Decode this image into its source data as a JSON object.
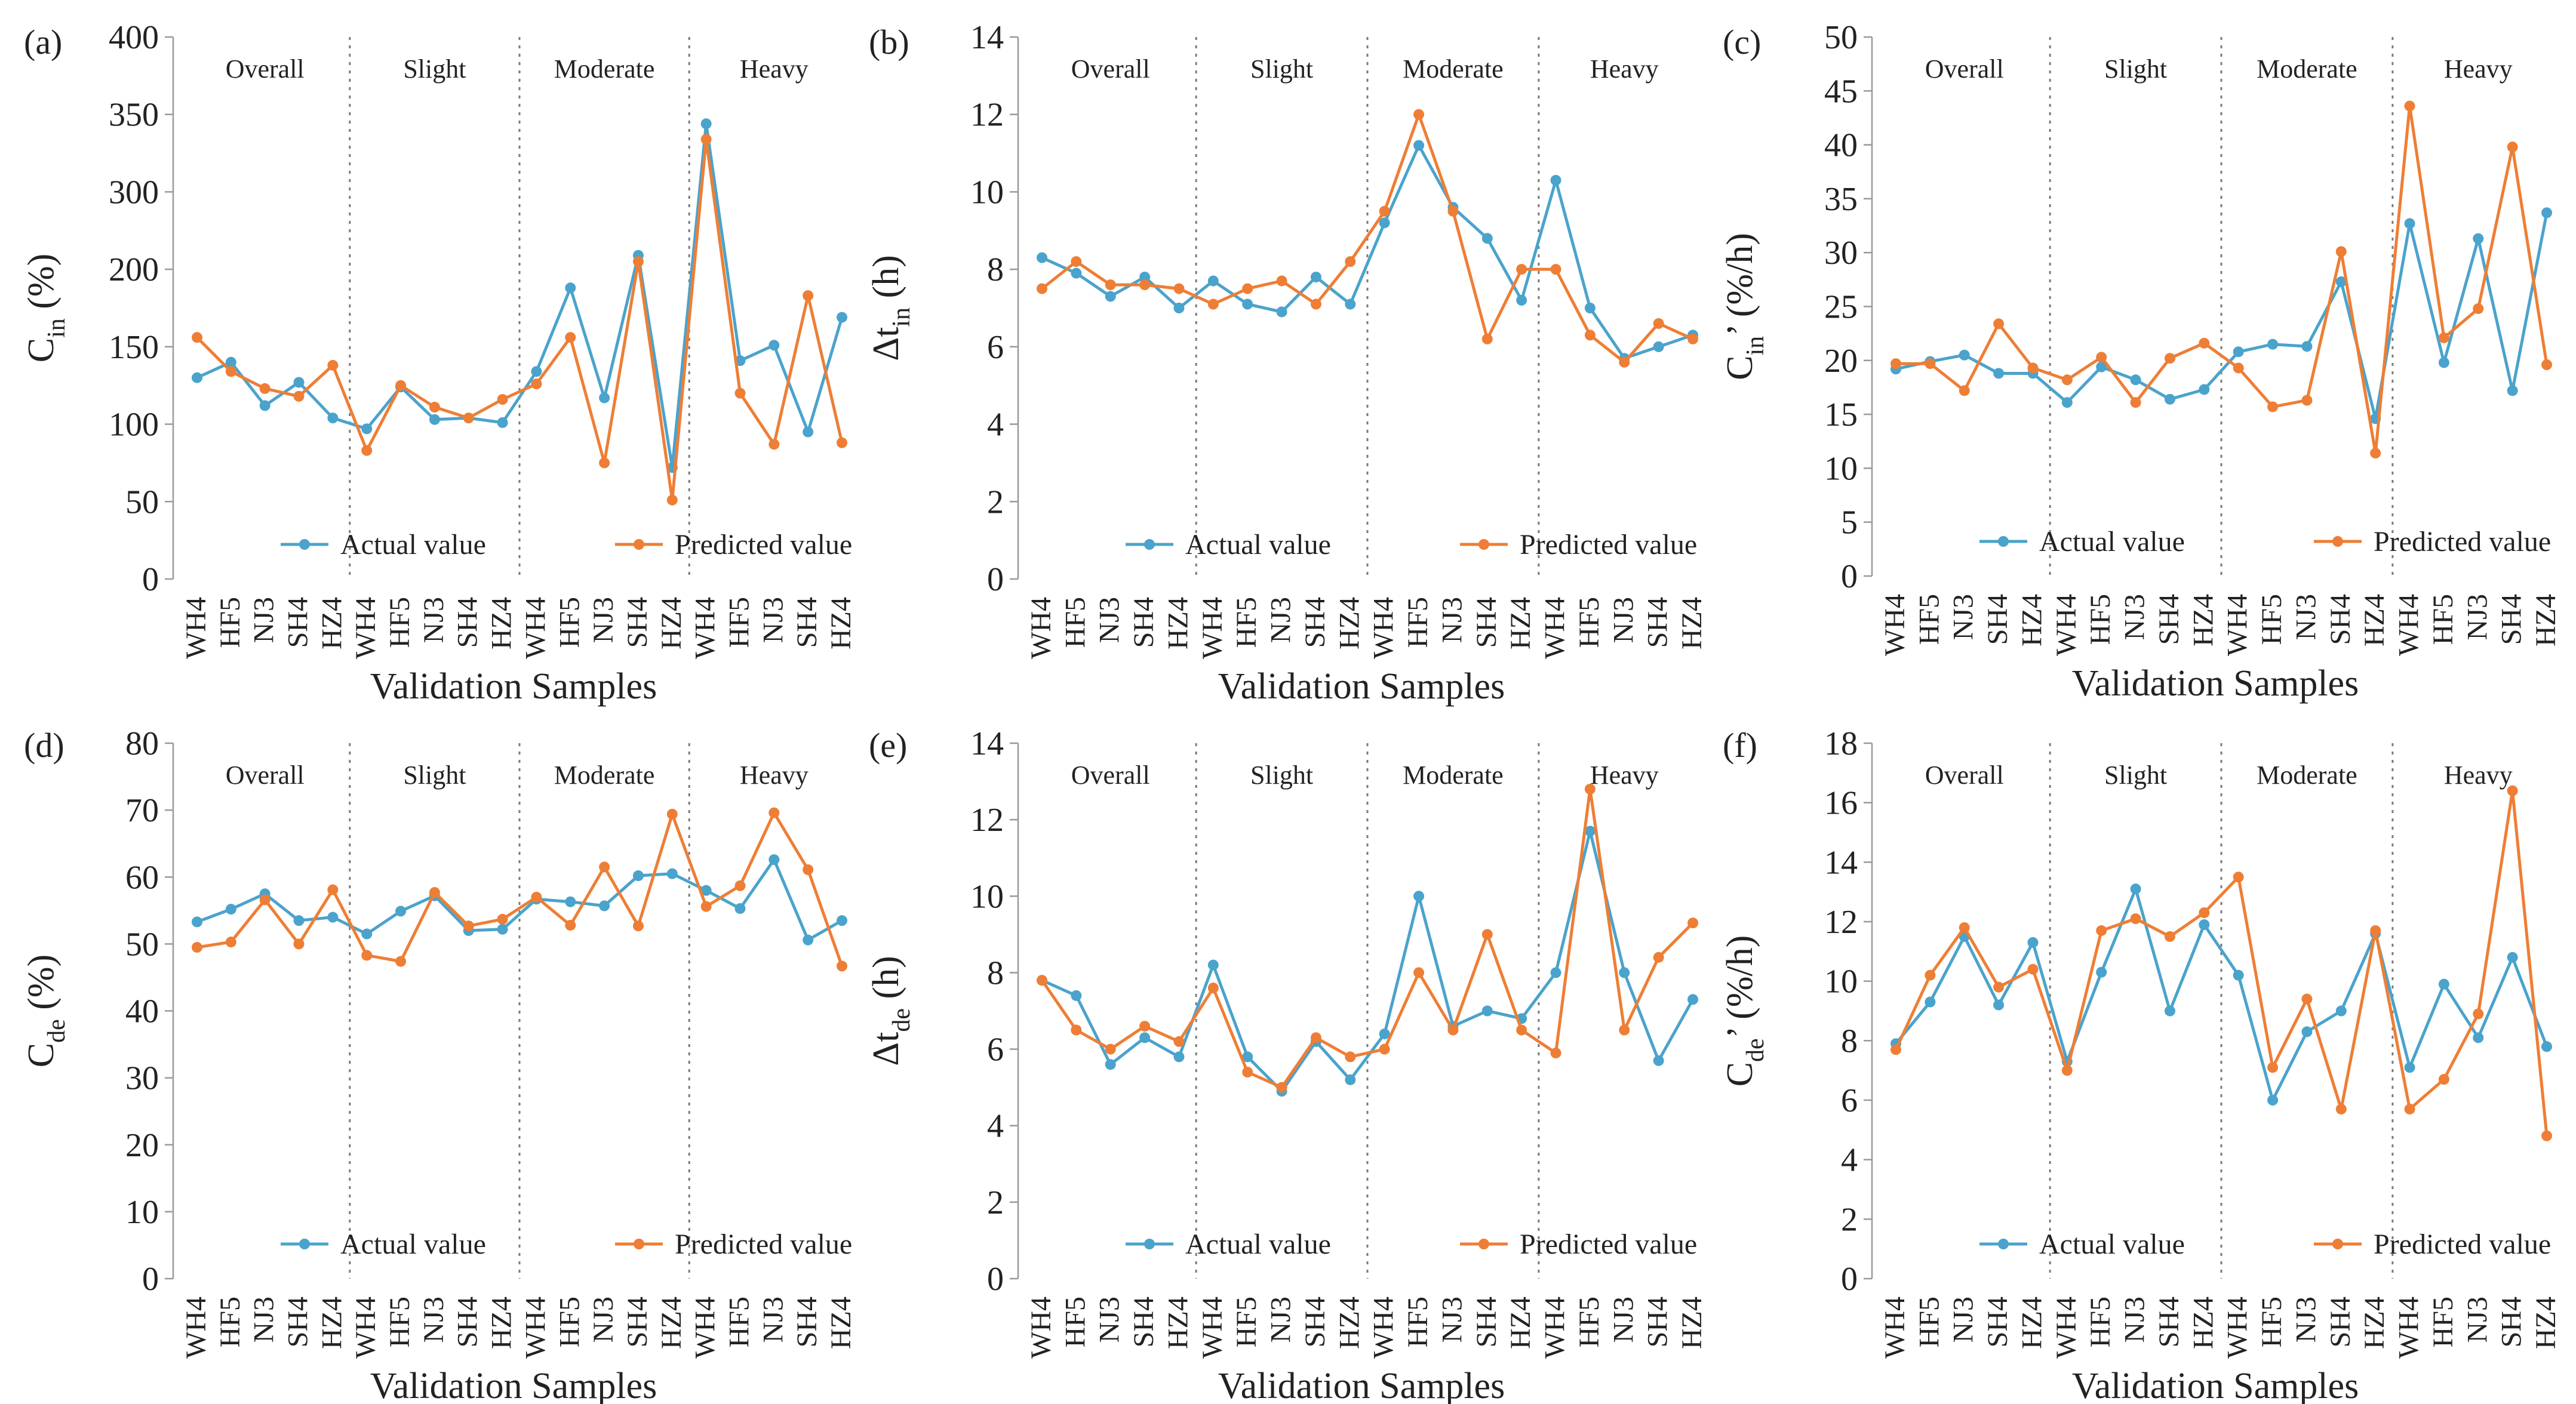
{
  "figure": {
    "x_categories": [
      "WH4",
      "HF5",
      "NJ3",
      "SH4",
      "HZ4",
      "WH4",
      "HF5",
      "NJ3",
      "SH4",
      "HZ4",
      "WH4",
      "HF5",
      "NJ3",
      "SH4",
      "HZ4",
      "WH4",
      "HF5",
      "NJ3",
      "SH4",
      "HZ4"
    ],
    "groups": [
      "Overall",
      "Slight",
      "Moderate",
      "Heavy"
    ],
    "legend": [
      "Actual value",
      "Predicted value"
    ],
    "colors": {
      "actual": "#4aa3cc",
      "predicted": "#ee7e35"
    }
  },
  "chart_data": [
    {
      "type": "line",
      "label": "(a)",
      "ylabel_main": "C",
      "ylabel_sub": "in",
      "ylabel_unit": " (%)",
      "xlabel": "Validation Samples",
      "yticks": [
        0,
        50,
        100,
        150,
        200,
        300,
        350,
        400
      ],
      "series": [
        {
          "name": "Actual value",
          "values": [
            130,
            140,
            112,
            127,
            104,
            97,
            124,
            103,
            104,
            101,
            134,
            188,
            117,
            218,
            72,
            344,
            141,
            151,
            95,
            169
          ]
        },
        {
          "name": "Predicted value",
          "values": [
            156,
            134,
            123,
            118,
            138,
            83,
            125,
            111,
            104,
            116,
            126,
            156,
            75,
            210,
            51,
            334,
            120,
            87,
            183,
            88
          ]
        }
      ]
    },
    {
      "type": "line",
      "label": "(b)",
      "ylabel_main": "Δt",
      "ylabel_sub": "in",
      "ylabel_unit": " (h)",
      "xlabel": "Validation Samples",
      "yticks": [
        0,
        2,
        4,
        6,
        8,
        10,
        12,
        14
      ],
      "series": [
        {
          "name": "Actual value",
          "values": [
            8.3,
            7.9,
            7.3,
            7.8,
            7.0,
            7.7,
            7.1,
            6.9,
            7.8,
            7.1,
            9.2,
            11.2,
            9.6,
            8.8,
            7.2,
            10.3,
            7.0,
            5.7,
            6.0,
            6.3
          ]
        },
        {
          "name": "Predicted value",
          "values": [
            7.5,
            8.2,
            7.6,
            7.6,
            7.5,
            7.1,
            7.5,
            7.7,
            7.1,
            8.2,
            9.5,
            12.0,
            9.5,
            6.2,
            8.0,
            8.0,
            6.3,
            5.6,
            6.6,
            6.2
          ]
        }
      ]
    },
    {
      "type": "line",
      "label": "(c)",
      "ylabel_main": "C",
      "ylabel_sub": "in",
      "ylabel_unit": "’ (%/h)",
      "xlabel": "Validation Samples",
      "yticks": [
        0,
        5,
        10,
        15,
        20,
        25,
        30,
        35,
        40,
        45,
        50
      ],
      "series": [
        {
          "name": "Actual value",
          "values": [
            19.2,
            19.9,
            20.5,
            18.8,
            18.8,
            16.1,
            19.4,
            18.2,
            16.4,
            17.3,
            20.8,
            21.5,
            21.3,
            27.3,
            14.6,
            32.7,
            19.8,
            31.3,
            17.2,
            33.7
          ]
        },
        {
          "name": "Predicted value",
          "values": [
            19.7,
            19.7,
            17.2,
            23.4,
            19.3,
            18.2,
            20.3,
            16.1,
            20.2,
            21.6,
            19.3,
            15.7,
            16.3,
            30.1,
            11.4,
            43.6,
            22.1,
            24.8,
            39.8,
            19.6
          ]
        }
      ]
    },
    {
      "type": "line",
      "label": "(d)",
      "ylabel_main": "C",
      "ylabel_sub": "de",
      "ylabel_unit": " (%)",
      "xlabel": "Validation Samples",
      "yticks": [
        0,
        10,
        20,
        30,
        40,
        50,
        60,
        70,
        80
      ],
      "series": [
        {
          "name": "Actual value",
          "values": [
            53.3,
            55.2,
            57.5,
            53.5,
            54.0,
            51.5,
            54.9,
            57.2,
            52.0,
            52.2,
            56.7,
            56.3,
            55.7,
            60.2,
            60.5,
            58.0,
            55.3,
            62.6,
            50.6,
            53.5
          ]
        },
        {
          "name": "Predicted value",
          "values": [
            49.5,
            50.3,
            56.6,
            50.0,
            58.1,
            48.3,
            47.4,
            57.7,
            52.7,
            53.7,
            57.0,
            52.8,
            61.5,
            52.7,
            69.4,
            55.6,
            58.7,
            69.6,
            61.1,
            46.7
          ]
        }
      ]
    },
    {
      "type": "line",
      "label": "(e)",
      "ylabel_main": "Δt",
      "ylabel_sub": "de",
      "ylabel_unit": " (h)",
      "xlabel": "Validation Samples",
      "yticks": [
        0,
        2,
        4,
        6,
        8,
        10,
        12,
        14
      ],
      "series": [
        {
          "name": "Actual value",
          "values": [
            7.8,
            7.4,
            5.6,
            6.3,
            5.8,
            8.2,
            5.8,
            4.9,
            6.2,
            5.2,
            6.4,
            10.0,
            6.6,
            7.0,
            6.8,
            8.0,
            11.7,
            8.0,
            5.7,
            7.3
          ]
        },
        {
          "name": "Predicted value",
          "values": [
            7.8,
            6.5,
            6.0,
            6.6,
            6.2,
            7.6,
            5.4,
            5.0,
            6.3,
            5.8,
            6.0,
            8.0,
            6.5,
            9.0,
            6.5,
            5.9,
            12.8,
            6.5,
            8.4,
            9.3
          ]
        }
      ]
    },
    {
      "type": "line",
      "label": "(f)",
      "ylabel_main": "C",
      "ylabel_sub": "de",
      "ylabel_unit": "’ (%/h)",
      "xlabel": "Validation Samples",
      "yticks": [
        0,
        2,
        4,
        6,
        8,
        10,
        12,
        14,
        16,
        18
      ],
      "series": [
        {
          "name": "Actual value",
          "values": [
            7.9,
            9.3,
            11.5,
            9.2,
            11.3,
            7.3,
            10.3,
            13.1,
            9.0,
            11.9,
            10.2,
            6.0,
            8.3,
            9.0,
            11.6,
            7.1,
            9.9,
            8.1,
            10.8,
            7.8
          ]
        },
        {
          "name": "Predicted value",
          "values": [
            7.7,
            10.2,
            11.8,
            9.8,
            10.4,
            7.0,
            11.7,
            12.1,
            11.5,
            12.3,
            13.5,
            7.1,
            9.4,
            5.7,
            11.7,
            5.7,
            6.7,
            8.9,
            16.4,
            4.8
          ]
        }
      ]
    }
  ]
}
